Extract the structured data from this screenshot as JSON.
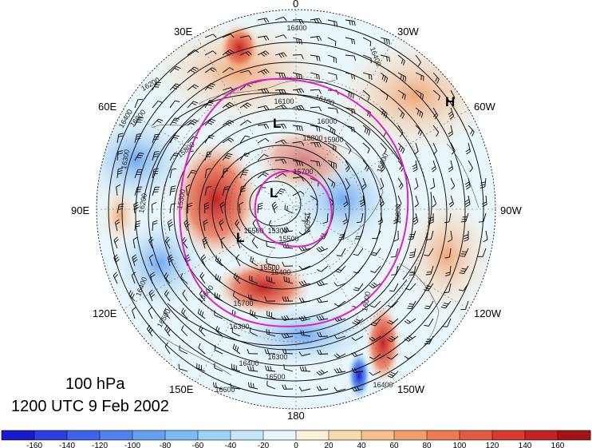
{
  "title": {
    "level": "100 hPa",
    "time": "1200 UTC 9 Feb 2002"
  },
  "longitude_labels": [
    "0",
    "30W",
    "60W",
    "90W",
    "120W",
    "150W",
    "180",
    "150E",
    "120E",
    "90E",
    "60E",
    "30E"
  ],
  "contour_labels": [
    "16400",
    "16400",
    "16300",
    "16100",
    "16100",
    "16000",
    "15900",
    "15800",
    "15700",
    "15600",
    "15500",
    "15500",
    "15400",
    "15300",
    "15600",
    "15800",
    "16000",
    "16300",
    "16400",
    "16500",
    "16600",
    "16600",
    "16500",
    "16400",
    "16300",
    "16200",
    "15800",
    "16000",
    "16200",
    "16400",
    "15700",
    "15500",
    "15300",
    "16400"
  ],
  "pressure_systems": [
    {
      "letter": "H",
      "kind": "high"
    },
    {
      "letter": "L",
      "kind": "low"
    },
    {
      "letter": "L",
      "kind": "low"
    },
    {
      "letter": "L",
      "kind": "low"
    }
  ],
  "colorbar": {
    "ticks": [
      "-160",
      "-140",
      "-120",
      "-100",
      "-80",
      "-60",
      "-40",
      "-20",
      "0",
      "20",
      "40",
      "60",
      "80",
      "100",
      "120",
      "140",
      "160"
    ],
    "colors": [
      "#1a1acc",
      "#2b3fe0",
      "#3d63ea",
      "#4f82ee",
      "#64a0f0",
      "#7cbcf2",
      "#9dd3f5",
      "#c4e8f9",
      "#e6f6fc",
      "#fcf2d9",
      "#f9dbb0",
      "#f6c08a",
      "#f29e6a",
      "#ec7a52",
      "#e45a40",
      "#d63a30",
      "#c22424",
      "#a41414"
    ]
  },
  "colors": {
    "magenta_contour": "#e020c8",
    "height_contour": "#111111"
  }
}
